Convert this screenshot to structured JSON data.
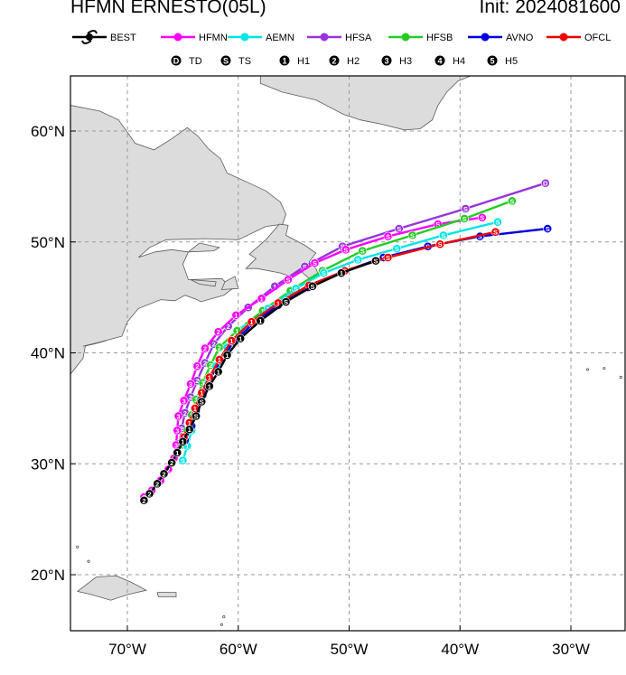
{
  "title": "HFMN ERNESTO(05L)",
  "init_label": "Init: 2024081600",
  "colors": {
    "land": "#dcdcdc",
    "coast": "#5a5a5a",
    "grid": "#999999",
    "BEST": "#000000",
    "HFMN": "#ff00ff",
    "AEMN": "#00e5e5",
    "HFSA": "#9933dd",
    "HFSB": "#22cc22",
    "AVNO": "#0000dd",
    "OFCL": "#ee0000"
  },
  "legend": {
    "models": [
      "BEST",
      "HFMN",
      "AEMN",
      "HFSA",
      "HFSB",
      "AVNO",
      "OFCL"
    ],
    "intensity": [
      {
        "symbol": "D",
        "label": "TD"
      },
      {
        "symbol": "S",
        "label": "TS"
      },
      {
        "symbol": "1",
        "label": "H1"
      },
      {
        "symbol": "2",
        "label": "H2"
      },
      {
        "symbol": "3",
        "label": "H3"
      },
      {
        "symbol": "4",
        "label": "H4"
      },
      {
        "symbol": "5",
        "label": "H5"
      }
    ]
  },
  "axes": {
    "lon_ticks": [
      -70,
      -60,
      -50,
      -40,
      -30
    ],
    "lon_labels": [
      "70°W",
      "60°W",
      "50°W",
      "40°W",
      "30°W"
    ],
    "lat_ticks": [
      20,
      30,
      40,
      50,
      60
    ],
    "lat_labels": [
      "20°N",
      "30°N",
      "40°N",
      "50°N",
      "60°N"
    ],
    "lon_range": [
      -75,
      -25
    ],
    "lat_range": [
      15,
      65
    ]
  },
  "tracks": [
    {
      "model": "BEST",
      "points": [
        [
          -68.5,
          26.7
        ],
        [
          -68.0,
          27.3
        ],
        [
          -67.3,
          28.2
        ],
        [
          -66.7,
          29.1
        ],
        [
          -66.0,
          30.1
        ],
        [
          -65.5,
          31.0
        ],
        [
          -65.0,
          32.0
        ],
        [
          -64.4,
          33.1
        ],
        [
          -63.8,
          34.3
        ],
        [
          -63.3,
          35.6
        ],
        [
          -62.6,
          37.0
        ],
        [
          -61.8,
          38.3
        ],
        [
          -61.0,
          39.8
        ],
        [
          -59.8,
          41.3
        ],
        [
          -58.0,
          42.9
        ],
        [
          -55.7,
          44.6
        ],
        [
          -53.3,
          46.0
        ],
        [
          -50.7,
          47.2
        ],
        [
          -47.6,
          48.3
        ]
      ],
      "symbols": [
        "2",
        "2",
        "2",
        "2",
        "2",
        "1",
        "1",
        "1",
        "S",
        "S",
        "1",
        "1",
        "1",
        "1",
        "1",
        "S",
        "S",
        "1",
        "S"
      ]
    },
    {
      "model": "HFMN",
      "points": [
        [
          -68.5,
          27.0
        ],
        [
          -67.8,
          27.6
        ],
        [
          -67.0,
          28.5
        ],
        [
          -66.3,
          29.5
        ],
        [
          -65.8,
          30.5
        ],
        [
          -65.6,
          31.7
        ],
        [
          -65.5,
          33.0
        ],
        [
          -65.4,
          34.3
        ],
        [
          -64.9,
          35.7
        ],
        [
          -64.3,
          37.2
        ],
        [
          -63.7,
          38.8
        ],
        [
          -63.0,
          40.4
        ],
        [
          -61.8,
          41.9
        ],
        [
          -60.2,
          43.4
        ],
        [
          -57.9,
          44.9
        ],
        [
          -55.5,
          46.6
        ],
        [
          -53.1,
          48.1
        ],
        [
          -50.3,
          49.3
        ],
        [
          -46.5,
          50.5
        ],
        [
          -42.0,
          51.6
        ],
        [
          -38.0,
          52.2
        ]
      ],
      "symbols": [
        "2",
        "2",
        "2",
        "2",
        "2",
        "3",
        "3",
        "3",
        "3",
        "3",
        "2",
        "2",
        "2",
        "1",
        "1",
        "S",
        "S",
        "S",
        "S",
        "S",
        "S"
      ]
    },
    {
      "model": "AEMN",
      "points": [
        [
          -65.0,
          30.3
        ],
        [
          -64.6,
          31.6
        ],
        [
          -64.2,
          33.0
        ],
        [
          -63.9,
          34.4
        ],
        [
          -63.4,
          35.8
        ],
        [
          -62.7,
          37.3
        ],
        [
          -62.0,
          38.8
        ],
        [
          -61.0,
          40.5
        ],
        [
          -59.4,
          42.2
        ],
        [
          -57.3,
          44.0
        ],
        [
          -54.8,
          45.8
        ],
        [
          -52.3,
          47.2
        ],
        [
          -49.2,
          48.4
        ],
        [
          -45.7,
          49.4
        ],
        [
          -41.5,
          50.6
        ],
        [
          -36.6,
          51.8
        ]
      ],
      "symbols": [
        "S",
        "1",
        "2",
        "2",
        "3",
        "2",
        "2",
        "1",
        "1",
        "1",
        "S",
        "S",
        "S",
        "S",
        "S",
        "S"
      ]
    },
    {
      "model": "HFSA",
      "points": [
        [
          -65.3,
          31.8
        ],
        [
          -65.1,
          33.2
        ],
        [
          -64.8,
          34.6
        ],
        [
          -64.3,
          36.0
        ],
        [
          -63.7,
          37.5
        ],
        [
          -63.0,
          39.1
        ],
        [
          -62.2,
          40.8
        ],
        [
          -60.9,
          42.4
        ],
        [
          -59.1,
          44.1
        ],
        [
          -56.7,
          46.0
        ],
        [
          -54.0,
          47.8
        ],
        [
          -50.6,
          49.6
        ],
        [
          -45.5,
          51.2
        ],
        [
          -39.5,
          53.0
        ],
        [
          -32.3,
          55.3
        ]
      ],
      "symbols": [
        "2",
        "2",
        "2",
        "2",
        "2",
        "2",
        "2",
        "2",
        "2",
        "1",
        "S",
        "S",
        "S",
        "S",
        "D"
      ]
    },
    {
      "model": "HFSB",
      "points": [
        [
          -65.0,
          31.7
        ],
        [
          -64.6,
          33.0
        ],
        [
          -64.2,
          34.4
        ],
        [
          -63.8,
          35.8
        ],
        [
          -63.2,
          37.3
        ],
        [
          -62.5,
          38.9
        ],
        [
          -61.7,
          40.5
        ],
        [
          -60.1,
          42.0
        ],
        [
          -57.8,
          43.8
        ],
        [
          -55.3,
          45.6
        ],
        [
          -52.4,
          47.4
        ],
        [
          -48.8,
          49.2
        ],
        [
          -44.3,
          50.6
        ],
        [
          -39.6,
          52.1
        ],
        [
          -35.3,
          53.7
        ]
      ],
      "symbols": [
        "S",
        "1",
        "2",
        "3",
        "3",
        "2",
        "2",
        "1",
        "1",
        "1",
        "S",
        "S",
        "S",
        "S",
        "S"
      ]
    },
    {
      "model": "AVNO",
      "points": [
        [
          -64.8,
          32.1
        ],
        [
          -64.2,
          33.4
        ],
        [
          -63.8,
          34.8
        ],
        [
          -63.2,
          36.2
        ],
        [
          -62.5,
          37.7
        ],
        [
          -61.6,
          39.3
        ],
        [
          -60.4,
          41.0
        ],
        [
          -58.7,
          42.6
        ],
        [
          -56.4,
          44.3
        ],
        [
          -53.7,
          45.9
        ],
        [
          -50.6,
          47.3
        ],
        [
          -46.9,
          48.6
        ],
        [
          -42.9,
          49.6
        ],
        [
          -38.2,
          50.5
        ],
        [
          -32.1,
          51.2
        ]
      ],
      "symbols": [
        "1",
        "1",
        "1",
        "1",
        "1",
        "1",
        "1",
        "1",
        "S",
        "S",
        "S",
        "S",
        "S",
        "S",
        "S"
      ]
    },
    {
      "model": "OFCL",
      "points": [
        [
          -64.9,
          32.4
        ],
        [
          -64.4,
          33.7
        ],
        [
          -63.9,
          35.0
        ],
        [
          -63.3,
          36.4
        ],
        [
          -62.6,
          37.8
        ],
        [
          -61.7,
          39.4
        ],
        [
          -60.6,
          41.1
        ],
        [
          -58.8,
          42.8
        ],
        [
          -56.4,
          44.5
        ],
        [
          -53.6,
          46.1
        ],
        [
          -50.4,
          47.4
        ],
        [
          -46.5,
          48.6
        ],
        [
          -41.8,
          49.8
        ],
        [
          -36.8,
          50.9
        ]
      ],
      "symbols": [
        "1",
        "1",
        "1",
        "1",
        "1",
        "1",
        "1",
        "1",
        "1",
        "1",
        "S",
        "S",
        "S",
        "S"
      ]
    }
  ]
}
